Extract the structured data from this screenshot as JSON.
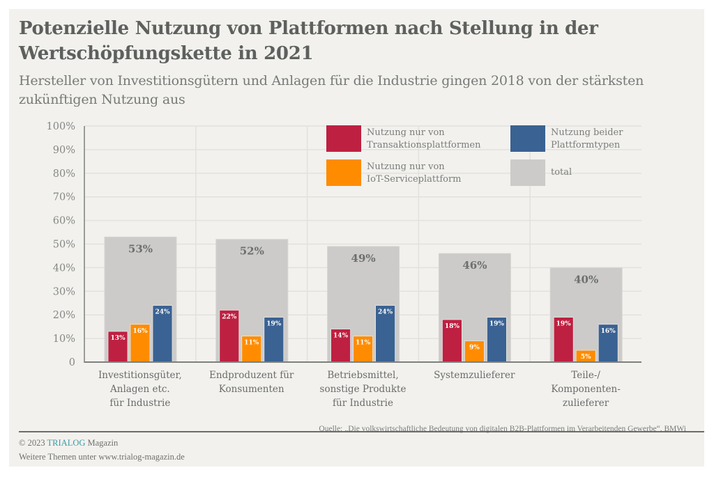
{
  "title": "Potenzielle Nutzung von Plattformen nach Stellung in der Wertschöpfungskette in 2021",
  "subtitle": "Hersteller von Investitionsgütern und Anlagen für die Industrie gingen 2018 von der stärksten zukünftigen Nutzung aus",
  "colors": {
    "transaktion": "#be2041",
    "iot": "#ff8c00",
    "beide": "#3a6292",
    "total": "#cccbc9",
    "axis": "#7d807d",
    "grid": "#e2e1de",
    "panel": "#f2f1ee"
  },
  "legend": [
    {
      "key": "transaktion",
      "label": "Nutzung nur von\nTransaktionsplattformen"
    },
    {
      "key": "beide",
      "label": "Nutzung beider\nPlattformtypen"
    },
    {
      "key": "iot",
      "label": "Nutzung nur von\nIoT-Serviceplattform"
    },
    {
      "key": "total",
      "label": "total"
    }
  ],
  "chart_data": {
    "type": "bar",
    "title": "Potenzielle Nutzung von Plattformen nach Stellung in der Wertschöpfungskette in 2021",
    "subtitle": "Hersteller von Investitionsgütern und Anlagen für die Industrie gingen 2018 von der stärksten zukünftigen Nutzung aus",
    "xlabel": "",
    "ylabel": "",
    "ylim": [
      0,
      100
    ],
    "yticks": [
      0,
      10,
      20,
      30,
      40,
      50,
      60,
      70,
      80,
      90,
      100
    ],
    "ytick_labels": [
      "0",
      "10%",
      "20%",
      "30%",
      "40%",
      "50%",
      "60%",
      "70%",
      "80%",
      "90%",
      "100%"
    ],
    "grid": true,
    "legend_position": "top-right",
    "categories": [
      "Investitionsgüter,\nAnlagen etc.\nfür Industrie",
      "Endproduzent für\nKonsumenten",
      "Betriebsmittel,\nsonstige Produkte\nfür Industrie",
      "Systemzulieferer",
      "Teile-/\nKomponenten-\nzulieferer"
    ],
    "series": [
      {
        "name": "total",
        "key": "total",
        "values": [
          53,
          52,
          49,
          46,
          40
        ],
        "labels": [
          "53%",
          "52%",
          "49%",
          "46%",
          "40%"
        ]
      },
      {
        "name": "Nutzung nur von Transaktionsplattformen",
        "key": "transaktion",
        "values": [
          13,
          22,
          14,
          18,
          19
        ],
        "labels": [
          "13%",
          "22%",
          "14%",
          "18%",
          "19%"
        ]
      },
      {
        "name": "Nutzung nur von IoT-Serviceplattform",
        "key": "iot",
        "values": [
          16,
          11,
          11,
          9,
          5
        ],
        "labels": [
          "16%",
          "11%",
          "11%",
          "9%",
          "5%"
        ]
      },
      {
        "name": "Nutzung beider Plattformtypen",
        "key": "beide",
        "values": [
          24,
          19,
          24,
          19,
          16
        ],
        "labels": [
          "24%",
          "19%",
          "24%",
          "19%",
          "16%"
        ]
      }
    ]
  },
  "source": "Quelle: „Die volkswirtschaftliche Bedeutung von digitalen B2B-Plattformen im Verarbeitenden Gewerbe“, BMWi",
  "footer": {
    "copyright": "© 2023",
    "brand": "TRIALOG",
    "brand_suffix": "Magazin",
    "more": "Weitere Themen unter www.trialog-magazin.de"
  }
}
